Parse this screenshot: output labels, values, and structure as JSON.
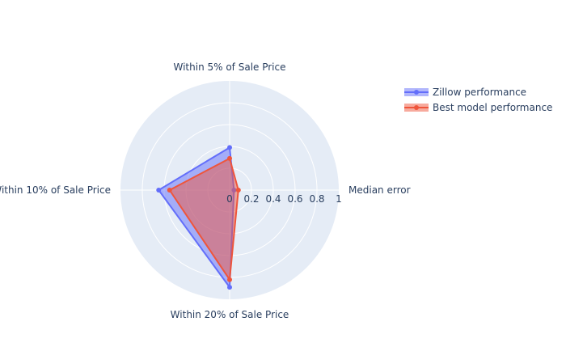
{
  "chart_data": {
    "type": "radar",
    "title": "",
    "axes": [
      "Median error",
      "Within 5% of Sale Price",
      "Within 10% of Sale Price",
      "Within 20% of Sale Price"
    ],
    "radial_range": [
      0,
      1
    ],
    "radial_ticks": [
      "0",
      "0.2",
      "0.4",
      "0.6",
      "0.8",
      "1"
    ],
    "grid": true,
    "legend_position": "top-right",
    "series": [
      {
        "name": "Zillow performance",
        "values": [
          0.04,
          0.39,
          0.65,
          0.89
        ],
        "color": "#636efa"
      },
      {
        "name": "Best model performance",
        "values": [
          0.08,
          0.29,
          0.55,
          0.82
        ],
        "color": "#ef553b"
      }
    ]
  }
}
